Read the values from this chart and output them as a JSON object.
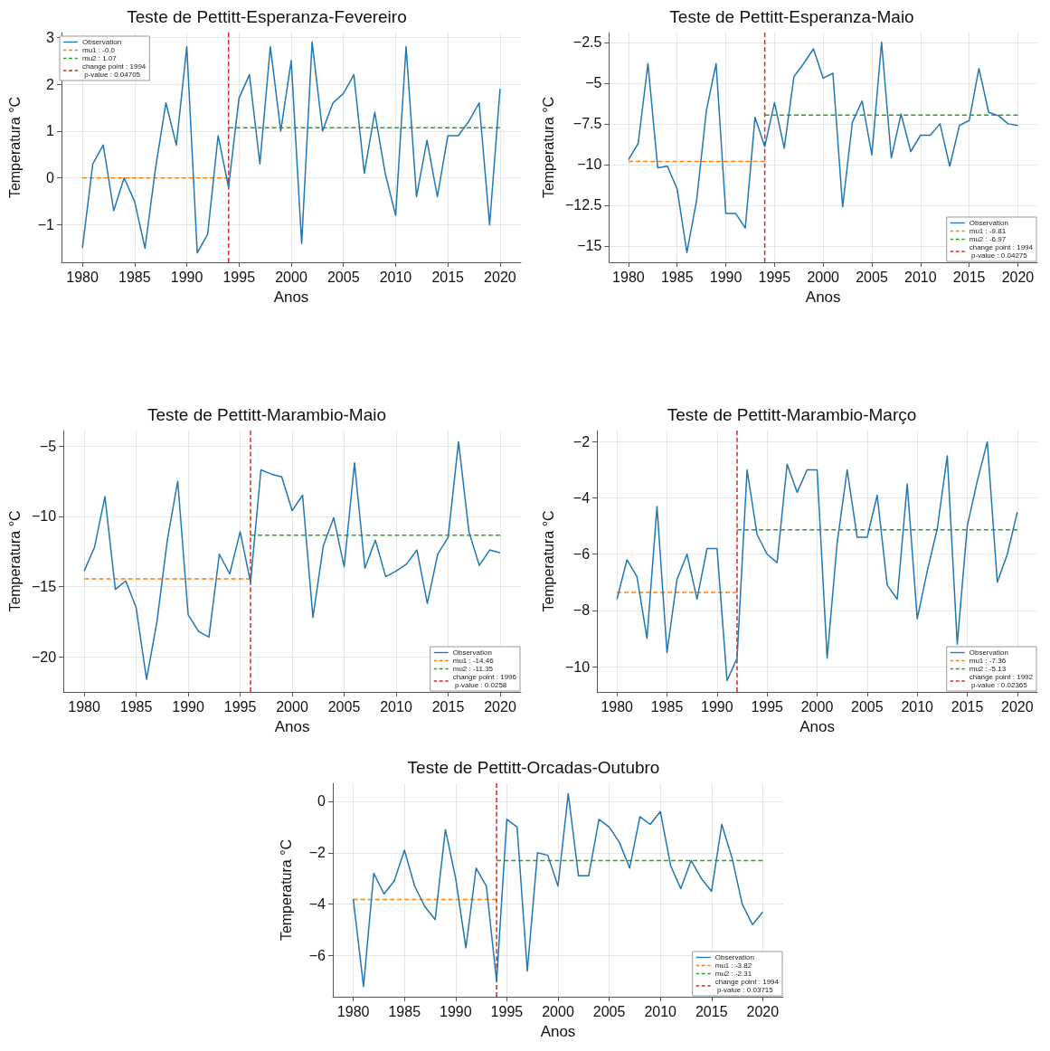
{
  "chart_data": [
    {
      "type": "line",
      "title": "Teste de Pettitt-Esperanza-Fevereiro",
      "xlabel": "Anos",
      "ylabel": "Temperatura °C",
      "grid": true,
      "legend": "top left",
      "marker": "none",
      "x": [
        1980,
        1981,
        1982,
        1983,
        1984,
        1985,
        1986,
        1987,
        1988,
        1989,
        1990,
        1991,
        1992,
        1993,
        1994,
        1995,
        1996,
        1997,
        1998,
        1999,
        2000,
        2001,
        2002,
        2003,
        2004,
        2005,
        2006,
        2007,
        2008,
        2009,
        2010,
        2011,
        2012,
        2013,
        2014,
        2015,
        2016,
        2017,
        2018,
        2019,
        2020
      ],
      "xlim": [
        1978,
        2022
      ],
      "xticks": [
        1980,
        1985,
        1990,
        1995,
        2000,
        2005,
        2010,
        2015,
        2020
      ],
      "ylim": [
        -1.8,
        3.1
      ],
      "yticks": [
        -1,
        0,
        1,
        2,
        3
      ],
      "series": [
        {
          "name": "Observation",
          "color": "#1f77b4",
          "line_style": "solid",
          "values": [
            -1.5,
            0.3,
            0.7,
            -0.7,
            0.0,
            -0.5,
            -1.5,
            0.2,
            1.6,
            0.7,
            2.8,
            -1.6,
            -1.2,
            0.9,
            -0.2,
            1.7,
            2.2,
            0.3,
            2.8,
            1.0,
            2.5,
            -1.4,
            2.9,
            1.0,
            1.6,
            1.8,
            2.2,
            0.1,
            1.4,
            0.1,
            -0.8,
            2.8,
            -0.4,
            0.8,
            -0.4,
            0.9,
            0.9,
            1.2,
            1.6,
            -1.0,
            1.9
          ]
        },
        {
          "name": "mu1 : -0.0",
          "color": "#ff7f0e",
          "line_style": "dashed",
          "x": [
            1980,
            1994
          ],
          "values": [
            0,
            0
          ]
        },
        {
          "name": "mu2 : 1.07",
          "color": "#2ca02c",
          "line_style": "dashed",
          "x": [
            1994,
            2020
          ],
          "values": [
            1.07,
            1.07
          ]
        },
        {
          "name": "change point : 1994\n p-value : 0.04705",
          "color": "#d62728",
          "line_style": "dashed",
          "x": [
            1994,
            1994
          ],
          "values": [
            -1.8,
            3.1
          ]
        }
      ]
    },
    {
      "type": "line",
      "title": "Teste de Pettitt-Esperanza-Maio",
      "xlabel": "Anos",
      "ylabel": "Temperatura °C",
      "grid": true,
      "legend": "bottom right",
      "marker": "none",
      "x": [
        1980,
        1981,
        1982,
        1983,
        1984,
        1985,
        1986,
        1987,
        1988,
        1989,
        1990,
        1991,
        1992,
        1993,
        1994,
        1995,
        1996,
        1997,
        1998,
        1999,
        2000,
        2001,
        2002,
        2003,
        2004,
        2005,
        2006,
        2007,
        2008,
        2009,
        2010,
        2011,
        2012,
        2013,
        2014,
        2015,
        2016,
        2017,
        2018,
        2019,
        2020
      ],
      "xlim": [
        1978,
        2022
      ],
      "xticks": [
        1980,
        1985,
        1990,
        1995,
        2000,
        2005,
        2010,
        2015,
        2020
      ],
      "ylim": [
        -16,
        -1.9
      ],
      "yticks": [
        -15,
        -12.5,
        -10,
        -7.5,
        -5,
        -2.5
      ],
      "series": [
        {
          "name": "Observation",
          "color": "#1f77b4",
          "line_style": "solid",
          "values": [
            -9.7,
            -8.7,
            -3.8,
            -10.2,
            -10.1,
            -11.5,
            -15.4,
            -12.2,
            -6.7,
            -3.8,
            -13.0,
            -13.0,
            -13.9,
            -7.1,
            -8.9,
            -6.2,
            -9.0,
            -4.6,
            -3.8,
            -2.9,
            -4.7,
            -4.4,
            -12.6,
            -7.4,
            -6.1,
            -9.4,
            -2.5,
            -9.6,
            -6.9,
            -9.2,
            -8.2,
            -8.2,
            -7.5,
            -10.1,
            -7.6,
            -7.3,
            -4.1,
            -6.8,
            -7.0,
            -7.5,
            -7.6
          ]
        },
        {
          "name": "mu1 : -9.81",
          "color": "#ff7f0e",
          "line_style": "dashed",
          "x": [
            1980,
            1994
          ],
          "values": [
            -9.81,
            -9.81
          ]
        },
        {
          "name": "mu2 : -6.97",
          "color": "#2ca02c",
          "line_style": "dashed",
          "x": [
            1994,
            2020
          ],
          "values": [
            -6.97,
            -6.97
          ]
        },
        {
          "name": "change point : 1994\n p-value : 0.04275",
          "color": "#d62728",
          "line_style": "dashed",
          "x": [
            1994,
            1994
          ],
          "values": [
            -16,
            -1.9
          ]
        }
      ]
    },
    {
      "type": "line",
      "title": "Teste de Pettitt-Marambio-Maio",
      "xlabel": "Anos",
      "ylabel": "Temperatura °C",
      "grid": true,
      "legend": "bottom right",
      "marker": "none",
      "x": [
        1980,
        1981,
        1982,
        1983,
        1984,
        1985,
        1986,
        1987,
        1988,
        1989,
        1990,
        1991,
        1992,
        1993,
        1994,
        1995,
        1996,
        1997,
        1998,
        1999,
        2000,
        2001,
        2002,
        2003,
        2004,
        2005,
        2006,
        2007,
        2008,
        2009,
        2010,
        2011,
        2012,
        2013,
        2014,
        2015,
        2016,
        2017,
        2018,
        2019,
        2020
      ],
      "xlim": [
        1978,
        2022
      ],
      "xticks": [
        1980,
        1985,
        1990,
        1995,
        2000,
        2005,
        2010,
        2015,
        2020
      ],
      "ylim": [
        -22.5,
        -3.9
      ],
      "yticks": [
        -20,
        -15,
        -10,
        -5
      ],
      "series": [
        {
          "name": "Observation",
          "color": "#1f77b4",
          "line_style": "solid",
          "values": [
            -13.9,
            -12.2,
            -8.6,
            -15.2,
            -14.6,
            -16.5,
            -21.6,
            -17.5,
            -11.7,
            -7.5,
            -17.0,
            -18.2,
            -18.6,
            -12.7,
            -14.1,
            -11.1,
            -14.7,
            -6.7,
            -7.0,
            -7.2,
            -9.6,
            -8.5,
            -17.2,
            -12.1,
            -10.1,
            -13.6,
            -6.2,
            -13.7,
            -11.7,
            -14.3,
            -13.9,
            -13.4,
            -12.4,
            -16.2,
            -12.7,
            -11.5,
            -4.7,
            -11.1,
            -13.5,
            -12.4,
            -12.6
          ]
        },
        {
          "name": "mu1 : -14.46",
          "color": "#ff7f0e",
          "line_style": "dashed",
          "x": [
            1980,
            1996
          ],
          "values": [
            -14.46,
            -14.46
          ]
        },
        {
          "name": "mu2 : -11.35",
          "color": "#2ca02c",
          "line_style": "dashed",
          "x": [
            1996,
            2020
          ],
          "values": [
            -11.35,
            -11.35
          ]
        },
        {
          "name": "change point : 1996\n p-value : 0.0258",
          "color": "#d62728",
          "line_style": "dashed",
          "x": [
            1996,
            1996
          ],
          "values": [
            -22.5,
            -3.9
          ]
        }
      ]
    },
    {
      "type": "line",
      "title": "Teste de Pettitt-Marambio-Março",
      "xlabel": "Anos",
      "ylabel": "Temperatura °C",
      "grid": true,
      "legend": "bottom right",
      "marker": "none",
      "x": [
        1980,
        1981,
        1982,
        1983,
        1984,
        1985,
        1986,
        1987,
        1988,
        1989,
        1990,
        1991,
        1992,
        1993,
        1994,
        1995,
        1996,
        1997,
        1998,
        1999,
        2000,
        2001,
        2002,
        2003,
        2004,
        2005,
        2006,
        2007,
        2008,
        2009,
        2010,
        2011,
        2012,
        2013,
        2014,
        2015,
        2016,
        2017,
        2018,
        2019,
        2020
      ],
      "xlim": [
        1978,
        2022
      ],
      "xticks": [
        1980,
        1985,
        1990,
        1995,
        2000,
        2005,
        2010,
        2015,
        2020
      ],
      "ylim": [
        -10.9,
        -1.6
      ],
      "yticks": [
        -10,
        -8,
        -6,
        -4,
        -2
      ],
      "series": [
        {
          "name": "Observation",
          "color": "#1f77b4",
          "line_style": "solid",
          "values": [
            -7.6,
            -6.2,
            -6.8,
            -9.0,
            -4.3,
            -9.5,
            -6.9,
            -6.0,
            -7.6,
            -5.8,
            -5.8,
            -10.5,
            -9.7,
            -3.0,
            -5.3,
            -6.0,
            -6.3,
            -2.8,
            -3.8,
            -3.0,
            -3.0,
            -9.7,
            -5.6,
            -3.0,
            -5.4,
            -5.4,
            -3.9,
            -7.1,
            -7.6,
            -3.5,
            -8.3,
            -6.6,
            -5.1,
            -2.5,
            -9.2,
            -5.0,
            -3.4,
            -2.0,
            -7.0,
            -6.0,
            -4.5
          ]
        },
        {
          "name": "mu1 : -7.36",
          "color": "#ff7f0e",
          "line_style": "dashed",
          "x": [
            1980,
            1992
          ],
          "values": [
            -7.36,
            -7.36
          ]
        },
        {
          "name": "mu2 : -5.13",
          "color": "#2ca02c",
          "line_style": "dashed",
          "x": [
            1992,
            2020
          ],
          "values": [
            -5.13,
            -5.13
          ]
        },
        {
          "name": "change point : 1992\n p-value : 0.02365",
          "color": "#d62728",
          "line_style": "dashed",
          "x": [
            1992,
            1992
          ],
          "values": [
            -10.9,
            -1.6
          ]
        }
      ]
    },
    {
      "type": "line",
      "title": "Teste de Pettitt-Orcadas-Outubro",
      "xlabel": "Anos",
      "ylabel": "Temperatura °C",
      "grid": true,
      "legend": "bottom right",
      "marker": "none",
      "x": [
        1980,
        1981,
        1982,
        1983,
        1984,
        1985,
        1986,
        1987,
        1988,
        1989,
        1990,
        1991,
        1992,
        1993,
        1994,
        1995,
        1996,
        1997,
        1998,
        1999,
        2000,
        2001,
        2002,
        2003,
        2004,
        2005,
        2006,
        2007,
        2008,
        2009,
        2010,
        2011,
        2012,
        2013,
        2014,
        2015,
        2016,
        2017,
        2018,
        2019,
        2020
      ],
      "xlim": [
        1978,
        2022
      ],
      "xticks": [
        1980,
        1985,
        1990,
        1995,
        2000,
        2005,
        2010,
        2015,
        2020
      ],
      "ylim": [
        -7.6,
        0.7
      ],
      "yticks": [
        -6,
        -4,
        -2,
        0
      ],
      "series": [
        {
          "name": "Observation",
          "color": "#1f77b4",
          "line_style": "solid",
          "values": [
            -3.8,
            -7.2,
            -2.8,
            -3.6,
            -3.1,
            -1.9,
            -3.3,
            -4.1,
            -4.6,
            -1.1,
            -3.0,
            -5.7,
            -2.6,
            -3.3,
            -7.0,
            -0.7,
            -1.0,
            -6.6,
            -2.0,
            -2.1,
            -3.3,
            0.3,
            -2.9,
            -2.9,
            -0.7,
            -1.0,
            -1.6,
            -2.6,
            -0.6,
            -0.9,
            -0.4,
            -2.5,
            -3.4,
            -2.3,
            -3.0,
            -3.5,
            -0.9,
            -2.2,
            -4.0,
            -4.8,
            -4.3
          ]
        },
        {
          "name": "mu1 : -3.82",
          "color": "#ff7f0e",
          "line_style": "dashed",
          "x": [
            1980,
            1994
          ],
          "values": [
            -3.82,
            -3.82
          ]
        },
        {
          "name": "mu2 : -2.31",
          "color": "#2ca02c",
          "line_style": "dashed",
          "x": [
            1994,
            2020
          ],
          "values": [
            -2.31,
            -2.31
          ]
        },
        {
          "name": "change point : 1994\n p-value : 0.03715",
          "color": "#d62728",
          "line_style": "dashed",
          "x": [
            1994,
            1994
          ],
          "values": [
            -7.6,
            0.7
          ]
        }
      ]
    }
  ]
}
